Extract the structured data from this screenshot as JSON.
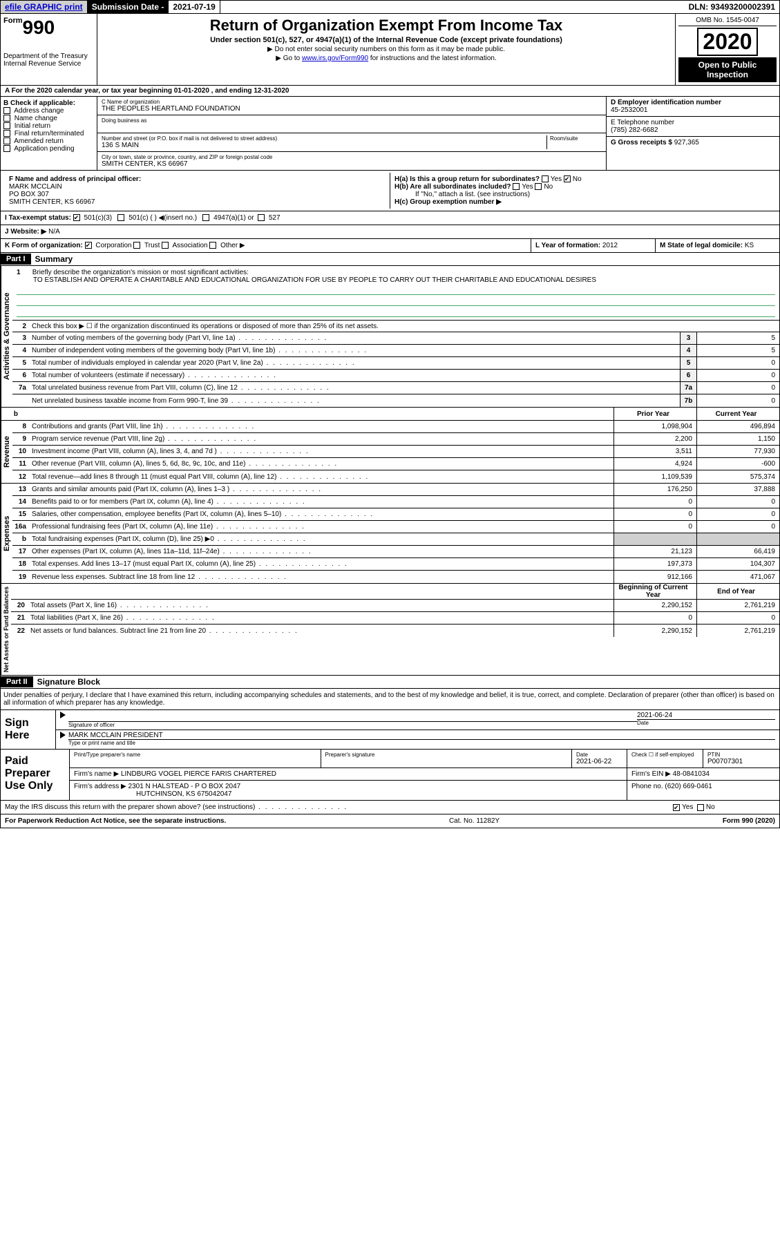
{
  "topbar": {
    "efile": "efile GRAPHIC print",
    "sub_date_label": "Submission Date - ",
    "sub_date": "2021-07-19",
    "dln_label": "DLN: ",
    "dln": "93493200002391"
  },
  "header": {
    "form_word": "Form",
    "form_num": "990",
    "dept": "Department of the Treasury\nInternal Revenue Service",
    "title": "Return of Organization Exempt From Income Tax",
    "subtitle": "Under section 501(c), 527, or 4947(a)(1) of the Internal Revenue Code (except private foundations)",
    "note1": "▶ Do not enter social security numbers on this form as it may be made public.",
    "note2_pre": "▶ Go to ",
    "note2_link": "www.irs.gov/Form990",
    "note2_post": " for instructions and the latest information.",
    "omb": "OMB No. 1545-0047",
    "year": "2020",
    "open": "Open to Public Inspection"
  },
  "line_a": "A For the 2020 calendar year, or tax year beginning 01-01-2020   , and ending 12-31-2020",
  "b": {
    "title": "B Check if applicable:",
    "opts": [
      "Address change",
      "Name change",
      "Initial return",
      "Final return/terminated",
      "Amended return",
      "Application pending"
    ]
  },
  "c": {
    "name_label": "C Name of organization",
    "name": "THE PEOPLES HEARTLAND FOUNDATION",
    "dba_label": "Doing business as",
    "addr_label": "Number and street (or P.O. box if mail is not delivered to street address)",
    "room_label": "Room/suite",
    "addr": "136 S MAIN",
    "city_label": "City or town, state or province, country, and ZIP or foreign postal code",
    "city": "SMITH CENTER, KS  66967"
  },
  "d": {
    "label": "D Employer identification number",
    "ein": "45-2532001",
    "e_label": "E Telephone number",
    "phone": "(785) 282-6682",
    "g_label": "G Gross receipts $ ",
    "g_val": "927,365"
  },
  "f": {
    "label": "F  Name and address of principal officer:",
    "name": "MARK MCCLAIN",
    "addr1": "PO BOX 307",
    "addr2": "SMITH CENTER, KS  66967"
  },
  "h": {
    "a": "H(a)  Is this a group return for subordinates?",
    "a_yes": "Yes",
    "a_no": "No",
    "b": "H(b)  Are all subordinates included?",
    "b_yes": "Yes",
    "b_no": "No",
    "b_note": "If \"No,\" attach a list. (see instructions)",
    "c": "H(c)  Group exemption number ▶"
  },
  "i": {
    "label": "I    Tax-exempt status:",
    "opt1": "501(c)(3)",
    "opt2": "501(c) (  ) ◀(insert no.)",
    "opt3": "4947(a)(1) or",
    "opt4": "527"
  },
  "j": {
    "label": "J   Website: ▶",
    "val": "N/A"
  },
  "k": {
    "label": "K Form of organization:",
    "corp": "Corporation",
    "trust": "Trust",
    "assoc": "Association",
    "other": "Other ▶"
  },
  "l": {
    "label": "L Year of formation: ",
    "val": "2012"
  },
  "m": {
    "label": "M State of legal domicile: ",
    "val": "KS"
  },
  "part1": {
    "header": "Part I",
    "title": "Summary",
    "activities_label": "Activities & Governance",
    "q1_num": "1",
    "q1_text": "Briefly describe the organization's mission or most significant activities:",
    "q1_val": "TO ESTABLISH AND OPERATE A CHARITABLE AND EDUCATIONAL ORGANIZATION FOR USE BY PEOPLE TO CARRY OUT THEIR CHARITABLE AND EDUCATIONAL DESIRES",
    "q2_num": "2",
    "q2_text": "Check this box ▶ ☐  if the organization discontinued its operations or disposed of more than 25% of its net assets.",
    "rows_ag": [
      {
        "num": "3",
        "text": "Number of voting members of the governing body (Part VI, line 1a)",
        "box": "3",
        "val": "5"
      },
      {
        "num": "4",
        "text": "Number of independent voting members of the governing body (Part VI, line 1b)",
        "box": "4",
        "val": "5"
      },
      {
        "num": "5",
        "text": "Total number of individuals employed in calendar year 2020 (Part V, line 2a)",
        "box": "5",
        "val": "0"
      },
      {
        "num": "6",
        "text": "Total number of volunteers (estimate if necessary)",
        "box": "6",
        "val": "0"
      },
      {
        "num": "7a",
        "text": "Total unrelated business revenue from Part VIII, column (C), line 12",
        "box": "7a",
        "val": "0"
      },
      {
        "num": "",
        "text": "Net unrelated business taxable income from Form 990-T, line 39",
        "box": "7b",
        "val": "0"
      }
    ],
    "b_row": "b",
    "prior_year": "Prior Year",
    "current_year": "Current Year",
    "revenue_label": "Revenue",
    "rows_rev": [
      {
        "num": "8",
        "text": "Contributions and grants (Part VIII, line 1h)",
        "py": "1,098,904",
        "cy": "496,894"
      },
      {
        "num": "9",
        "text": "Program service revenue (Part VIII, line 2g)",
        "py": "2,200",
        "cy": "1,150"
      },
      {
        "num": "10",
        "text": "Investment income (Part VIII, column (A), lines 3, 4, and 7d )",
        "py": "3,511",
        "cy": "77,930"
      },
      {
        "num": "11",
        "text": "Other revenue (Part VIII, column (A), lines 5, 6d, 8c, 9c, 10c, and 11e)",
        "py": "4,924",
        "cy": "-600"
      },
      {
        "num": "12",
        "text": "Total revenue—add lines 8 through 11 (must equal Part VIII, column (A), line 12)",
        "py": "1,109,539",
        "cy": "575,374"
      }
    ],
    "expenses_label": "Expenses",
    "rows_exp": [
      {
        "num": "13",
        "text": "Grants and similar amounts paid (Part IX, column (A), lines 1–3 )",
        "py": "176,250",
        "cy": "37,888"
      },
      {
        "num": "14",
        "text": "Benefits paid to or for members (Part IX, column (A), line 4)",
        "py": "0",
        "cy": "0"
      },
      {
        "num": "15",
        "text": "Salaries, other compensation, employee benefits (Part IX, column (A), lines 5–10)",
        "py": "0",
        "cy": "0"
      },
      {
        "num": "16a",
        "text": "Professional fundraising fees (Part IX, column (A), line 11e)",
        "py": "0",
        "cy": "0"
      },
      {
        "num": "b",
        "text": "Total fundraising expenses (Part IX, column (D), line 25) ▶0",
        "py": "",
        "cy": "",
        "shaded": true
      },
      {
        "num": "17",
        "text": "Other expenses (Part IX, column (A), lines 11a–11d, 11f–24e)",
        "py": "21,123",
        "cy": "66,419"
      },
      {
        "num": "18",
        "text": "Total expenses. Add lines 13–17 (must equal Part IX, column (A), line 25)",
        "py": "197,373",
        "cy": "104,307"
      },
      {
        "num": "19",
        "text": "Revenue less expenses. Subtract line 18 from line 12",
        "py": "912,166",
        "cy": "471,067"
      }
    ],
    "netassets_label": "Net Assets or Fund Balances",
    "boy": "Beginning of Current Year",
    "eoy": "End of Year",
    "rows_na": [
      {
        "num": "20",
        "text": "Total assets (Part X, line 16)",
        "py": "2,290,152",
        "cy": "2,761,219"
      },
      {
        "num": "21",
        "text": "Total liabilities (Part X, line 26)",
        "py": "0",
        "cy": "0"
      },
      {
        "num": "22",
        "text": "Net assets or fund balances. Subtract line 21 from line 20",
        "py": "2,290,152",
        "cy": "2,761,219"
      }
    ]
  },
  "part2": {
    "header": "Part II",
    "title": "Signature Block",
    "perjury": "Under penalties of perjury, I declare that I have examined this return, including accompanying schedules and statements, and to the best of my knowledge and belief, it is true, correct, and complete. Declaration of preparer (other than officer) is based on all information of which preparer has any knowledge.",
    "sign_here": "Sign Here",
    "sig_officer_label": "Signature of officer",
    "date_label": "Date",
    "sig_date": "2021-06-24",
    "officer_name": "MARK MCCLAIN  PRESIDENT",
    "type_name_label": "Type or print name and title"
  },
  "paid": {
    "title": "Paid Preparer Use Only",
    "col1": "Print/Type preparer's name",
    "col2": "Preparer's signature",
    "col3": "Date",
    "col3_val": "2021-06-22",
    "col4": "Check ☐ if self-employed",
    "col5": "PTIN",
    "ptin": "P00707301",
    "firm_label": "Firm's name    ▶",
    "firm_name": "LINDBURG VOGEL PIERCE FARIS CHARTERED",
    "firm_ein_label": "Firm's EIN ▶",
    "firm_ein": "48-0841034",
    "firm_addr_label": "Firm's address ▶",
    "firm_addr1": "2301 N HALSTEAD - P O BOX 2047",
    "firm_addr2": "HUTCHINSON, KS  675042047",
    "phone_label": "Phone no. ",
    "phone": "(620) 669-0461"
  },
  "discuss": {
    "text": "May the IRS discuss this return with the preparer shown above? (see instructions)",
    "yes": "Yes",
    "no": "No"
  },
  "footer": {
    "left": "For Paperwork Reduction Act Notice, see the separate instructions.",
    "center": "Cat. No. 11282Y",
    "right": "Form 990 (2020)"
  }
}
